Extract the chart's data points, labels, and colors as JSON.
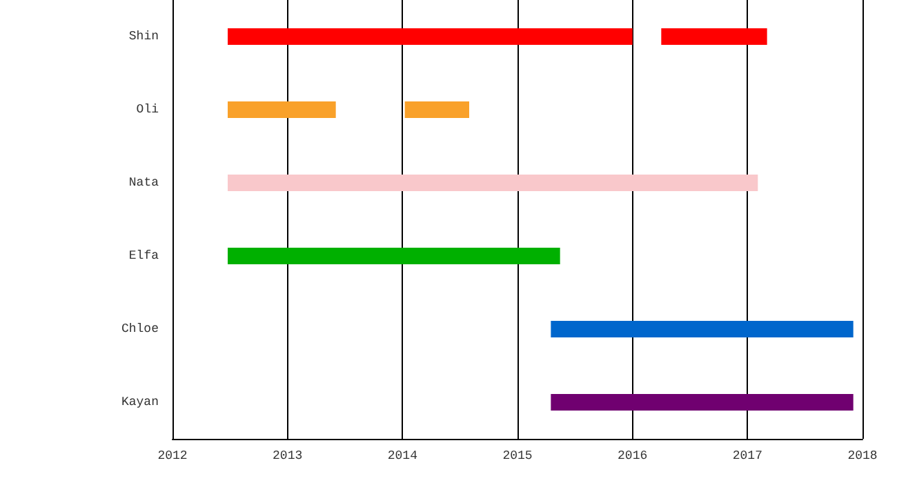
{
  "chart_data": {
    "type": "bar",
    "orientation": "horizontal",
    "categories": [
      "Shin",
      "Oli",
      "Nata",
      "Elfa",
      "Chloe",
      "Kayan"
    ],
    "series": [
      {
        "colors": [
          "#ff0000",
          "#f9a12a",
          "#f9c8cb",
          "#00b000",
          "#0066cc",
          "#700070"
        ],
        "base": [
          2012.48,
          2012.48,
          2012.48,
          2012.48,
          2015.29,
          2015.29
        ],
        "values": [
          3.52,
          0.94,
          4.61,
          2.89,
          2.63,
          2.63
        ]
      },
      {
        "colors": [
          "#ff0000",
          "#f9a12a",
          null,
          null,
          null,
          null
        ],
        "base": [
          2016.25,
          2014.02,
          null,
          null,
          null,
          null
        ],
        "values": [
          0.92,
          0.56,
          null,
          null,
          null,
          null
        ]
      }
    ],
    "xlim": [
      2012,
      2018
    ],
    "xticks": [
      2012,
      2013,
      2014,
      2015,
      2016,
      2017,
      2018
    ],
    "grid": "x"
  }
}
